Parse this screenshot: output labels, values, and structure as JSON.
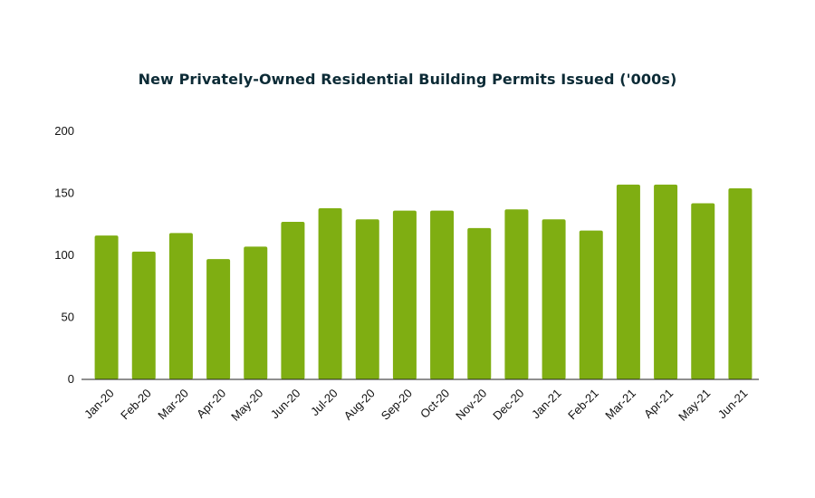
{
  "chart_data": {
    "type": "bar",
    "title": "New Privately-Owned Residential Building Permits Issued ('000s)",
    "xlabel": "",
    "ylabel": "",
    "categories": [
      "Jan-20",
      "Feb-20",
      "Mar-20",
      "Apr-20",
      "May-20",
      "Jun-20",
      "Jul-20",
      "Aug-20",
      "Sep-20",
      "Oct-20",
      "Nov-20",
      "Dec-20",
      "Jan-21",
      "Feb-21",
      "Mar-21",
      "Apr-21",
      "May-21",
      "Jun-21"
    ],
    "values": [
      116,
      103,
      118,
      97,
      107,
      127,
      138,
      129,
      136,
      136,
      122,
      137,
      129,
      120,
      157,
      157,
      142,
      154
    ],
    "ylim": [
      0,
      200
    ],
    "yticks": [
      0,
      50,
      100,
      150,
      200
    ],
    "grid": false,
    "bar_color": "#7fae12",
    "title_color": "#0c2b36"
  }
}
